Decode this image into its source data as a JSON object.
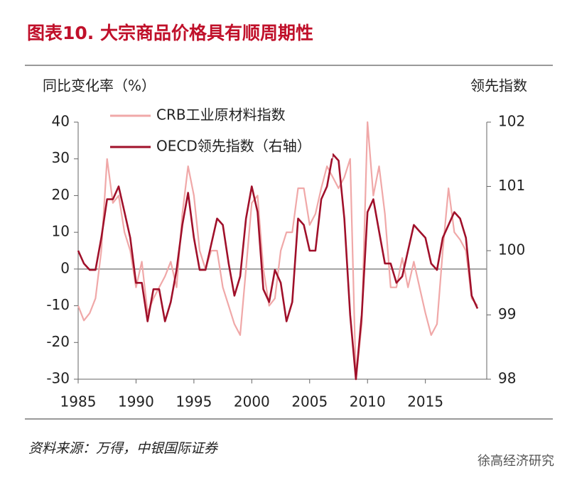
{
  "chart_data": {
    "type": "line",
    "title": "图表10. 大宗商品价格具有顺周期性",
    "y_label": "同比变化率（%）",
    "y2_label": "领先指数",
    "source": "资料来源：万得，中银国际证券",
    "watermark": "徐高经济研究",
    "x": [
      1985,
      1985.5,
      1986,
      1986.5,
      1987,
      1987.5,
      1988,
      1988.5,
      1989,
      1989.5,
      1990,
      1990.5,
      1991,
      1991.5,
      1992,
      1992.5,
      1993,
      1993.5,
      1994,
      1994.5,
      1995,
      1995.5,
      1996,
      1996.5,
      1997,
      1997.5,
      1998,
      1998.5,
      1999,
      1999.5,
      2000,
      2000.5,
      2001,
      2001.5,
      2002,
      2002.5,
      2003,
      2003.5,
      2004,
      2004.5,
      2005,
      2005.5,
      2006,
      2006.5,
      2007,
      2007.5,
      2008,
      2008.5,
      2009,
      2009.5,
      2010,
      2010.5,
      2011,
      2011.5,
      2012,
      2012.5,
      2013,
      2013.5,
      2014,
      2014.5,
      2015,
      2015.5,
      2016,
      2016.5,
      2017,
      2017.5,
      2018,
      2018.5,
      2019,
      2019.5
    ],
    "series": [
      {
        "name": "CRB工业原材料指数",
        "color": "#f0a8a8",
        "axis": "y",
        "values": [
          -10,
          -14,
          -12,
          -8,
          5,
          30,
          18,
          20,
          10,
          5,
          -5,
          2,
          -12,
          -8,
          -5,
          -2,
          2,
          -5,
          15,
          28,
          20,
          5,
          0,
          5,
          5,
          -5,
          -10,
          -15,
          -18,
          0,
          18,
          20,
          0,
          -10,
          -8,
          5,
          10,
          10,
          22,
          22,
          12,
          15,
          22,
          28,
          25,
          22,
          25,
          30,
          -30,
          -15,
          40,
          20,
          28,
          15,
          -5,
          -5,
          3,
          -5,
          2,
          -5,
          -12,
          -18,
          -15,
          5,
          22,
          10,
          8,
          5,
          -8,
          -10
        ]
      },
      {
        "name": "OECD领先指数（右轴）",
        "color": "#a0102a",
        "axis": "y2",
        "values": [
          100.0,
          99.8,
          99.7,
          99.7,
          100.2,
          100.8,
          100.8,
          101.0,
          100.6,
          100.2,
          99.5,
          99.5,
          98.9,
          99.4,
          99.4,
          98.9,
          99.2,
          99.7,
          100.4,
          100.9,
          100.2,
          99.7,
          99.7,
          100.1,
          100.5,
          100.4,
          99.8,
          99.3,
          99.6,
          100.5,
          101.0,
          100.6,
          99.4,
          99.2,
          99.7,
          99.5,
          98.9,
          99.2,
          100.5,
          100.4,
          100.0,
          100.0,
          100.8,
          101.0,
          101.5,
          101.4,
          100.5,
          99.0,
          98.0,
          99.0,
          100.6,
          100.8,
          100.3,
          99.8,
          99.8,
          99.5,
          99.6,
          100.0,
          100.4,
          100.3,
          100.2,
          99.8,
          99.7,
          100.2,
          100.4,
          100.6,
          100.5,
          100.2,
          99.3,
          99.1
        ]
      }
    ],
    "xlim": [
      1985,
      2020.3
    ],
    "xticks": [
      1985,
      1990,
      1995,
      2000,
      2005,
      2010,
      2015
    ],
    "ylim": [
      -30,
      40
    ],
    "yticks": [
      -30,
      -20,
      -10,
      0,
      10,
      20,
      30,
      40
    ],
    "y2lim": [
      98,
      102
    ],
    "y2ticks": [
      98,
      99,
      100,
      101,
      102
    ],
    "zero_line": true
  }
}
